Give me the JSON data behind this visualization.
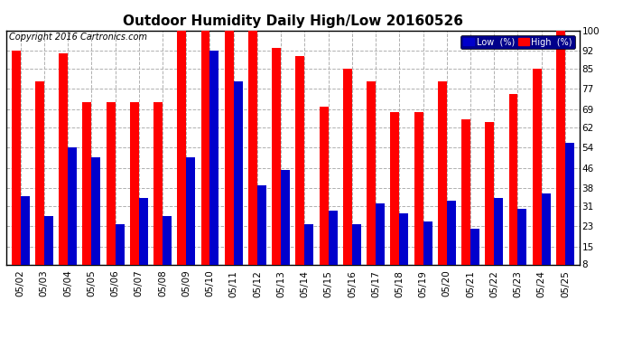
{
  "title": "Outdoor Humidity Daily High/Low 20160526",
  "copyright": "Copyright 2016 Cartronics.com",
  "dates": [
    "05/02",
    "05/03",
    "05/04",
    "05/05",
    "05/06",
    "05/07",
    "05/08",
    "05/09",
    "05/10",
    "05/11",
    "05/12",
    "05/13",
    "05/14",
    "05/15",
    "05/16",
    "05/17",
    "05/18",
    "05/19",
    "05/20",
    "05/21",
    "05/22",
    "05/23",
    "05/24",
    "05/25"
  ],
  "high": [
    92,
    80,
    91,
    72,
    72,
    72,
    72,
    100,
    100,
    100,
    100,
    93,
    90,
    70,
    85,
    80,
    68,
    68,
    80,
    65,
    64,
    75,
    85,
    100
  ],
  "low": [
    35,
    27,
    54,
    50,
    24,
    34,
    27,
    50,
    92,
    80,
    39,
    45,
    24,
    29,
    24,
    32,
    28,
    25,
    33,
    22,
    34,
    30,
    36,
    56
  ],
  "high_color": "#ff0000",
  "low_color": "#0000cc",
  "bg_color": "#ffffff",
  "grid_color": "#b0b0b0",
  "ylim_min": 8,
  "ylim_max": 100,
  "yticks": [
    8,
    15,
    23,
    31,
    38,
    46,
    54,
    62,
    69,
    77,
    85,
    92,
    100
  ],
  "bar_width": 0.38,
  "legend_low_label": "Low  (%)",
  "legend_high_label": "High  (%)",
  "title_fontsize": 11,
  "tick_fontsize": 7.5,
  "copyright_fontsize": 7
}
